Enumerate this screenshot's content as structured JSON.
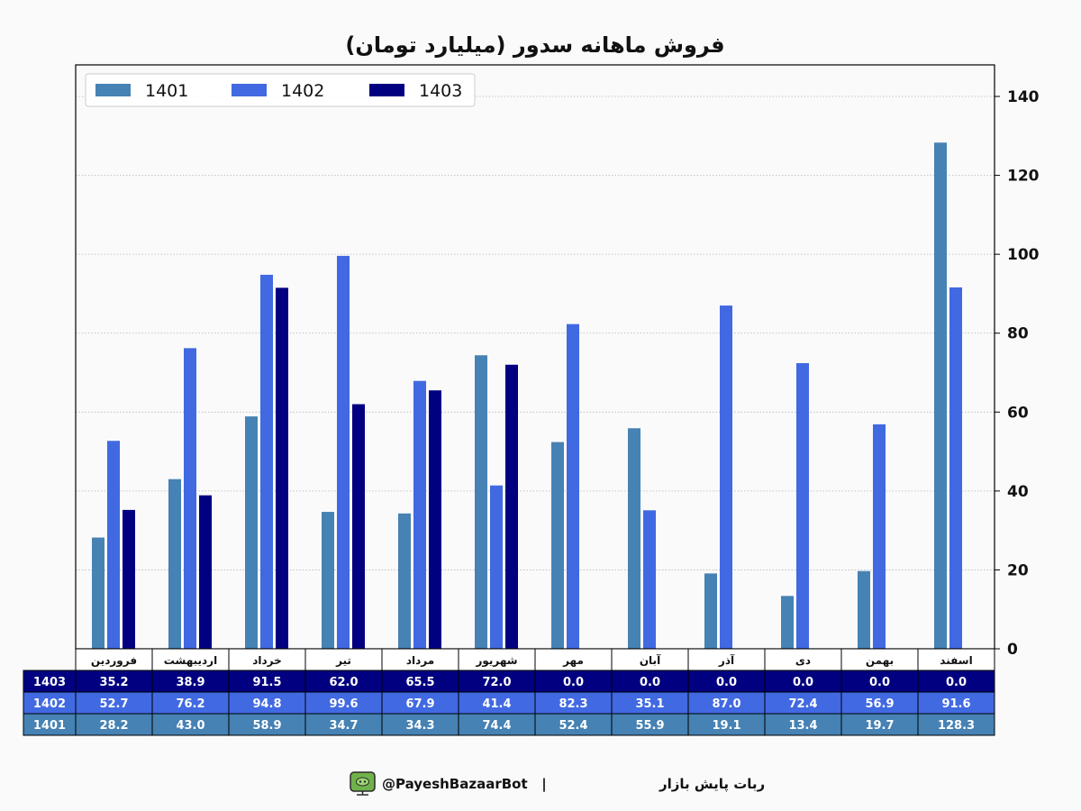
{
  "chart_data": {
    "type": "bar",
    "title": "فروش ماهانه سدور (میلیارد تومان)",
    "categories": [
      "فروردین",
      "اردیبهشت",
      "خرداد",
      "تیر",
      "مرداد",
      "شهریور",
      "مهر",
      "آبان",
      "آذر",
      "دی",
      "بهمن",
      "اسفند"
    ],
    "series": [
      {
        "name": "1401",
        "color": "#4682b4",
        "values": [
          28.2,
          43.0,
          58.9,
          34.7,
          34.3,
          74.4,
          52.4,
          55.9,
          19.1,
          13.4,
          19.7,
          128.3
        ]
      },
      {
        "name": "1402",
        "color": "#4169e1",
        "values": [
          52.7,
          76.2,
          94.8,
          99.6,
          67.9,
          41.4,
          82.3,
          35.1,
          87.0,
          72.4,
          56.9,
          91.6
        ]
      },
      {
        "name": "1403",
        "color": "#000080",
        "values": [
          35.2,
          38.9,
          91.5,
          62.0,
          65.5,
          72.0,
          0.0,
          0.0,
          0.0,
          0.0,
          0.0,
          0.0
        ]
      }
    ],
    "table_rows": [
      {
        "label": "1403",
        "cells": [
          "35.2",
          "38.9",
          "91.5",
          "62.0",
          "65.5",
          "72.0",
          "0.0",
          "0.0",
          "0.0",
          "0.0",
          "0.0",
          "0.0"
        ]
      },
      {
        "label": "1402",
        "cells": [
          "52.7",
          "76.2",
          "94.8",
          "99.6",
          "67.9",
          "41.4",
          "82.3",
          "35.1",
          "87.0",
          "72.4",
          "56.9",
          "91.6"
        ]
      },
      {
        "label": "1401",
        "cells": [
          "28.2",
          "43.0",
          "58.9",
          "34.7",
          "34.3",
          "74.4",
          "52.4",
          "55.9",
          "19.1",
          "13.4",
          "19.7",
          "128.3"
        ]
      }
    ],
    "y_ticks": [
      "0",
      "20",
      "40",
      "60",
      "80",
      "100",
      "120",
      "140"
    ],
    "ylim": [
      0,
      140
    ],
    "y_axis_side": "right",
    "grid": true,
    "legend_position": "top-left"
  },
  "footer": {
    "text": "ربات پایش بازار",
    "separator": "|",
    "handle": "@PayeshBazaarBot",
    "icon": "tv-robot-icon"
  }
}
